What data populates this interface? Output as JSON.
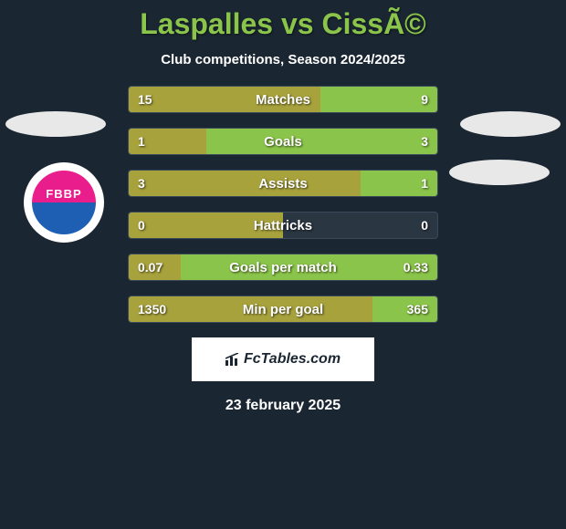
{
  "title": "Laspalles vs CissÃ©",
  "subtitle": "Club competitions, Season 2024/2025",
  "badge_text": "FBBP",
  "colors": {
    "background": "#1a2632",
    "title_color": "#8bc44a",
    "bar_left_color": "#a8a23d",
    "bar_right_color": "#8bc44a",
    "text_color": "#ffffff",
    "badge_top": "#e91e8c",
    "badge_bottom": "#1e5fb4"
  },
  "bars": [
    {
      "label": "Matches",
      "left_val": "15",
      "right_val": "9",
      "left_width": 62,
      "right_width": 38
    },
    {
      "label": "Goals",
      "left_val": "1",
      "right_val": "3",
      "left_width": 25,
      "right_width": 75
    },
    {
      "label": "Assists",
      "left_val": "3",
      "right_val": "1",
      "left_width": 75,
      "right_width": 25
    },
    {
      "label": "Hattricks",
      "left_val": "0",
      "right_val": "0",
      "left_width": 50,
      "right_width": 0
    },
    {
      "label": "Goals per match",
      "left_val": "0.07",
      "right_val": "0.33",
      "left_width": 17,
      "right_width": 83
    },
    {
      "label": "Min per goal",
      "left_val": "1350",
      "right_val": "365",
      "left_width": 79,
      "right_width": 21
    }
  ],
  "footer_logo": "FcTables.com",
  "date": "23 february 2025"
}
